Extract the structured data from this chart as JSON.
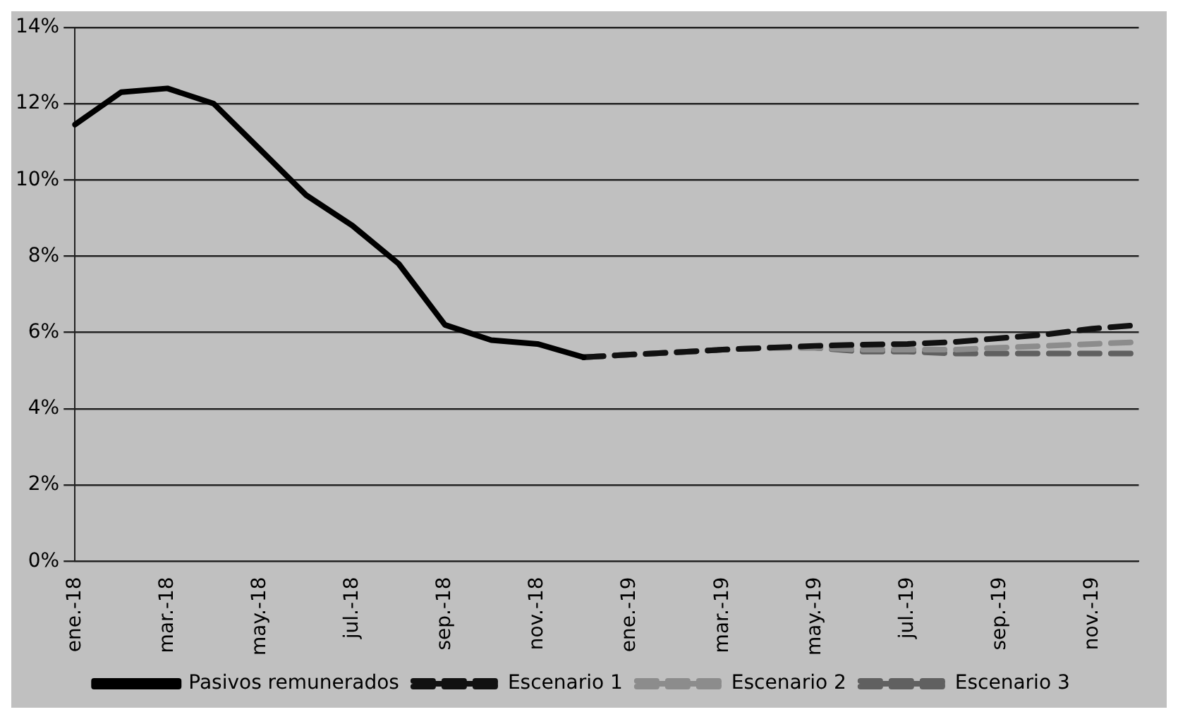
{
  "chart_data": {
    "type": "line",
    "categories": [
      "ene.-18",
      null,
      "mar.-18",
      null,
      "may.-18",
      null,
      "jul.-18",
      null,
      "sep.-18",
      null,
      "nov.-18",
      null,
      "ene.-19",
      null,
      "mar.-19",
      null,
      "may.-19",
      null,
      "jul.-19",
      null,
      "sep.-19",
      null,
      "nov.-19",
      null
    ],
    "series": [
      {
        "name": "Pasivos remunerados",
        "color": "#000000",
        "line_style": "solid",
        "values": [
          11.45,
          12.3,
          12.4,
          12.0,
          10.8,
          9.6,
          8.8,
          7.8,
          6.2,
          5.8,
          5.7,
          5.35,
          null,
          null,
          null,
          null,
          null,
          null,
          null,
          null,
          null,
          null,
          null,
          null
        ]
      },
      {
        "name": "Escenario 1",
        "color": "#111111",
        "line_style": "dashed",
        "values": [
          null,
          null,
          null,
          null,
          null,
          null,
          null,
          null,
          null,
          null,
          null,
          5.35,
          5.42,
          5.48,
          5.55,
          5.6,
          5.65,
          5.68,
          5.7,
          5.75,
          5.85,
          5.95,
          6.1,
          6.2
        ]
      },
      {
        "name": "Escenario 2",
        "color": "#8c8c8c",
        "line_style": "dashed",
        "values": [
          null,
          null,
          null,
          null,
          null,
          null,
          null,
          null,
          null,
          null,
          null,
          5.35,
          5.42,
          5.48,
          5.55,
          5.6,
          5.6,
          5.55,
          5.55,
          5.55,
          5.6,
          5.65,
          5.7,
          5.75
        ]
      },
      {
        "name": "Escenario 3",
        "color": "#606060",
        "line_style": "dashed",
        "values": [
          null,
          null,
          null,
          null,
          null,
          null,
          null,
          null,
          null,
          null,
          null,
          5.35,
          5.42,
          5.48,
          5.55,
          5.6,
          5.6,
          5.5,
          5.5,
          5.45,
          5.45,
          5.45,
          5.45,
          5.45
        ]
      }
    ],
    "ylim": [
      0,
      14
    ],
    "yticks": [
      {
        "value": 0,
        "label": "0%"
      },
      {
        "value": 2,
        "label": "2%"
      },
      {
        "value": 4,
        "label": "4%"
      },
      {
        "value": 6,
        "label": "6%"
      },
      {
        "value": 8,
        "label": "8%"
      },
      {
        "value": 10,
        "label": "10%"
      },
      {
        "value": 12,
        "label": "12%"
      },
      {
        "value": 14,
        "label": "14%"
      }
    ],
    "grid": "y",
    "legend": "bottom",
    "marker": "none"
  }
}
